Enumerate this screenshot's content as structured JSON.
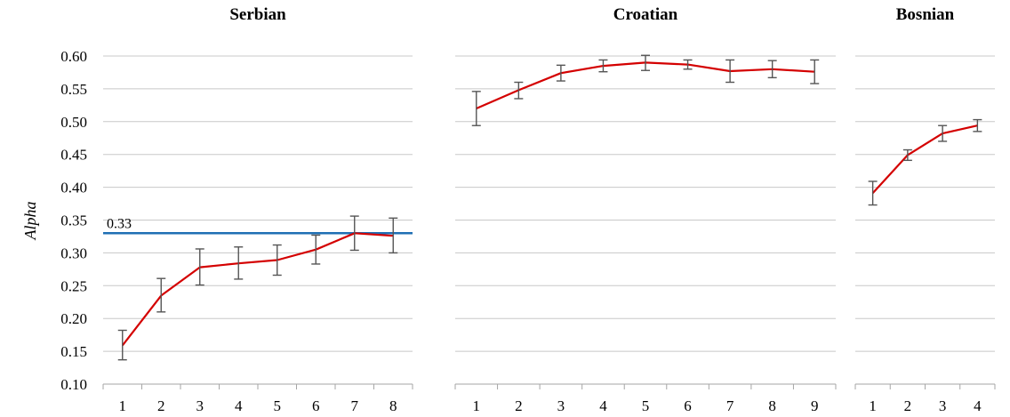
{
  "y_axis_label": "Alpha",
  "colors": {
    "series": "#d40000",
    "reference": "#1f6fb4",
    "error_bars": "#555555",
    "grid": "#c8c8c8"
  },
  "chart_data": [
    {
      "type": "line",
      "title": "Serbian",
      "categories": [
        "1",
        "2",
        "3",
        "4",
        "5",
        "6",
        "7",
        "8"
      ],
      "values": [
        0.159,
        0.235,
        0.278,
        0.284,
        0.289,
        0.305,
        0.33,
        0.326
      ],
      "error_low": [
        0.137,
        0.21,
        0.251,
        0.26,
        0.266,
        0.283,
        0.304,
        0.3
      ],
      "error_high": [
        0.182,
        0.261,
        0.306,
        0.309,
        0.312,
        0.327,
        0.356,
        0.353
      ],
      "reference_line": {
        "value": 0.33,
        "label": "0.33"
      },
      "ylabel": "Alpha",
      "ylim": [
        0.1,
        0.6
      ],
      "yticks": [
        "0.10",
        "0.15",
        "0.20",
        "0.25",
        "0.30",
        "0.35",
        "0.40",
        "0.45",
        "0.50",
        "0.55",
        "0.60"
      ],
      "grid": true
    },
    {
      "type": "line",
      "title": "Croatian",
      "categories": [
        "1",
        "2",
        "3",
        "4",
        "5",
        "6",
        "7",
        "8",
        "9"
      ],
      "values": [
        0.52,
        0.548,
        0.574,
        0.585,
        0.59,
        0.587,
        0.577,
        0.58,
        0.576
      ],
      "error_low": [
        0.494,
        0.535,
        0.562,
        0.576,
        0.578,
        0.58,
        0.56,
        0.567,
        0.558
      ],
      "error_high": [
        0.546,
        0.56,
        0.586,
        0.594,
        0.601,
        0.594,
        0.594,
        0.593,
        0.594
      ],
      "ylim": [
        0.1,
        0.6
      ],
      "grid": true
    },
    {
      "type": "line",
      "title": "Bosnian",
      "categories": [
        "1",
        "2",
        "3",
        "4"
      ],
      "values": [
        0.391,
        0.449,
        0.482,
        0.494
      ],
      "error_low": [
        0.373,
        0.441,
        0.47,
        0.485
      ],
      "error_high": [
        0.409,
        0.457,
        0.494,
        0.503
      ],
      "ylim": [
        0.1,
        0.6
      ],
      "grid": true
    }
  ]
}
